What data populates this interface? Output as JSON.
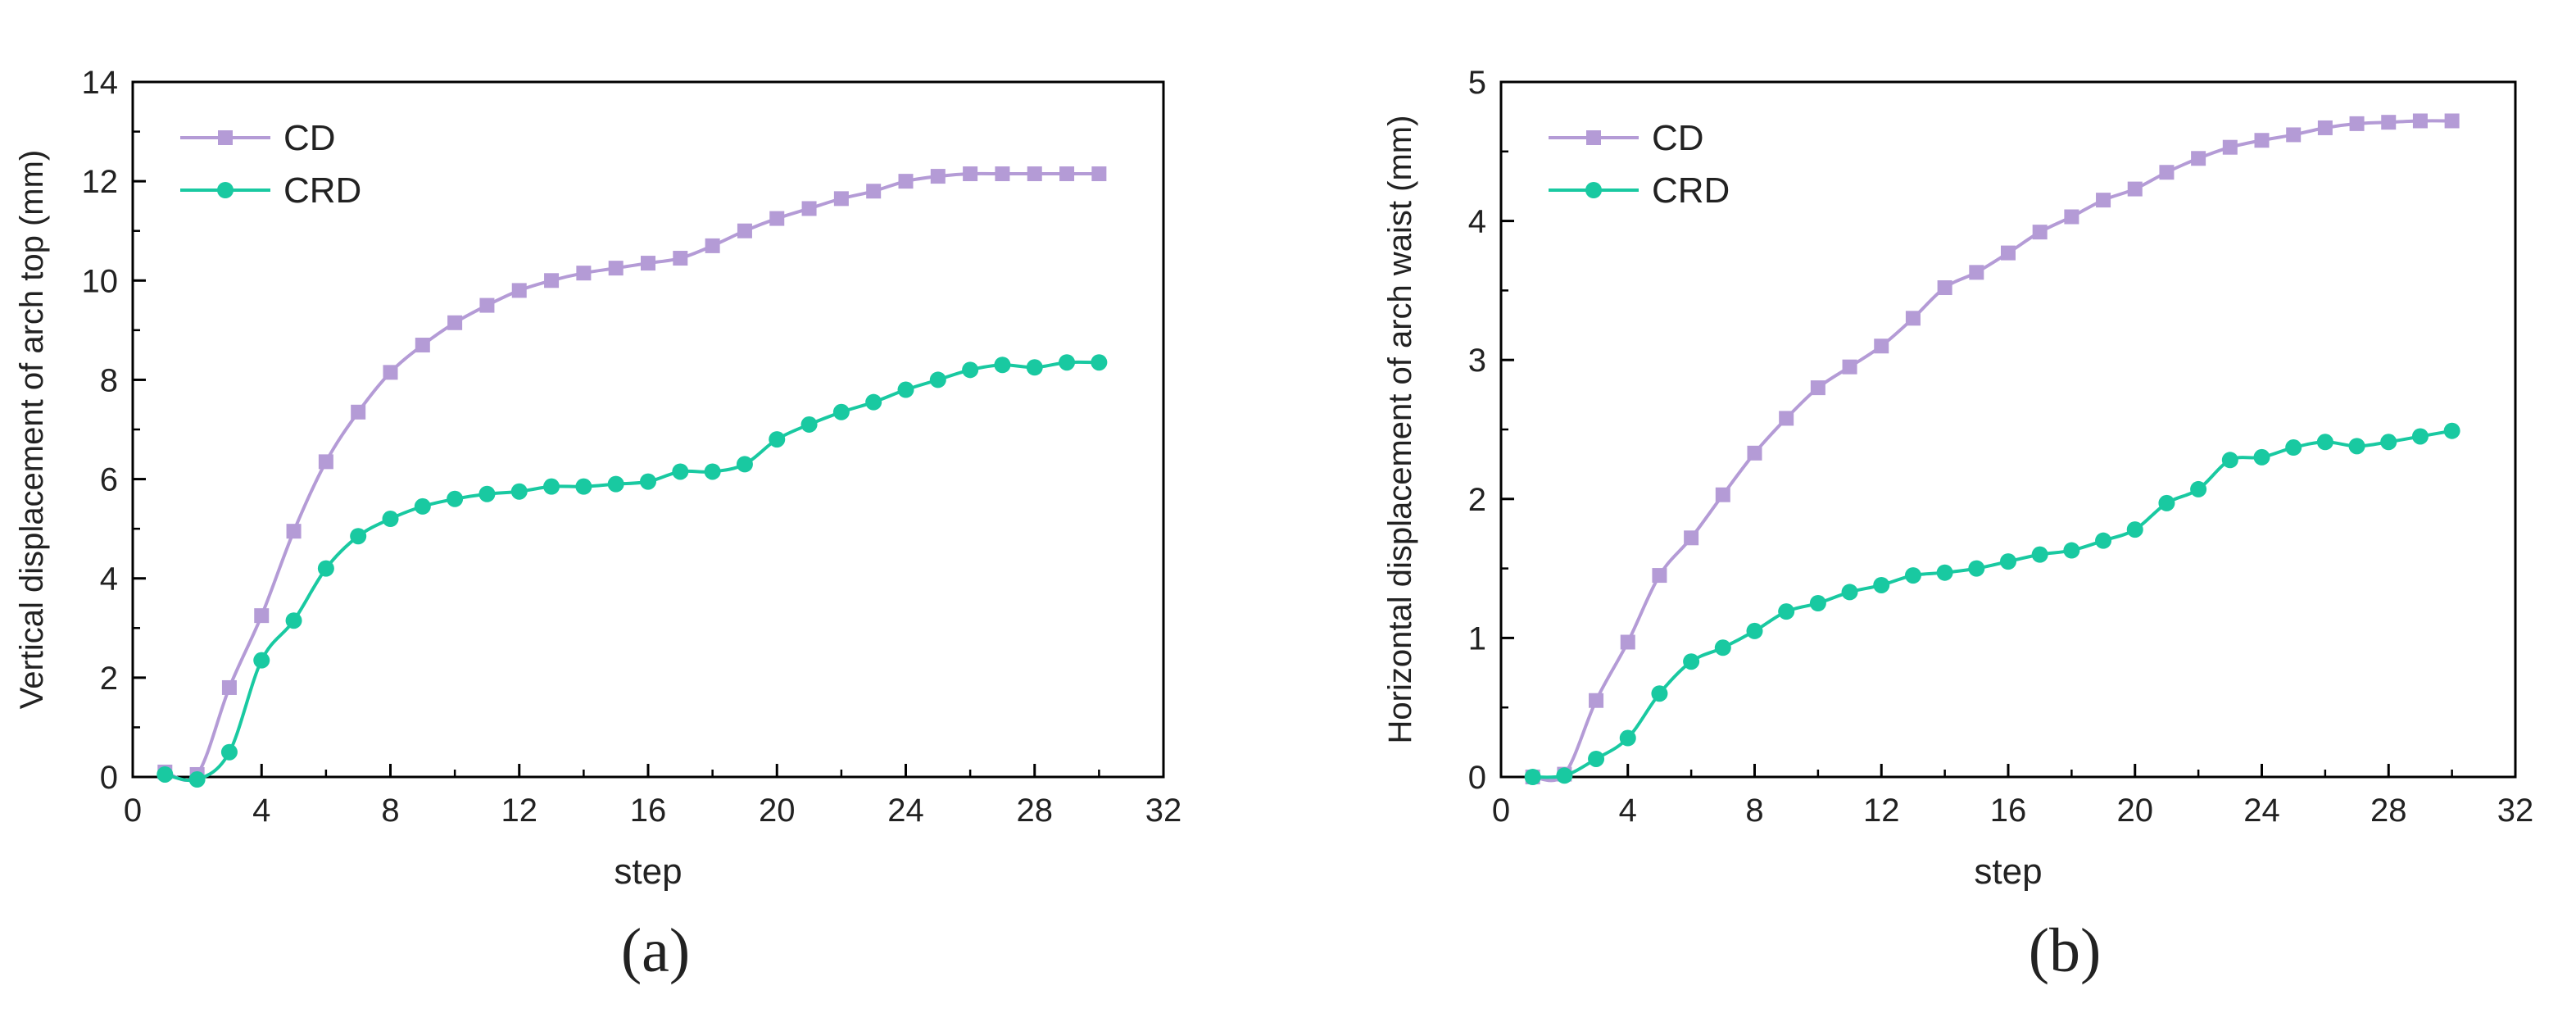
{
  "colors": {
    "CD": "#b49bd6",
    "CRD": "#19c9a1",
    "axis": "#000000"
  },
  "chart_data": [
    {
      "panel": "(a)",
      "type": "line",
      "xlabel": "step",
      "ylabel": "Vertical displacement of arch top (mm)",
      "xlim": [
        0,
        32
      ],
      "ylim": [
        0,
        14
      ],
      "xticks": [
        0,
        4,
        8,
        12,
        16,
        20,
        24,
        28,
        32
      ],
      "yticks": [
        0,
        2,
        4,
        6,
        8,
        10,
        12,
        14
      ],
      "grid": false,
      "legend": "top-left",
      "x": [
        1,
        2,
        3,
        4,
        5,
        6,
        7,
        8,
        9,
        10,
        11,
        12,
        13,
        14,
        15,
        16,
        17,
        18,
        19,
        20,
        21,
        22,
        23,
        24,
        25,
        26,
        27,
        28,
        29,
        30
      ],
      "series": [
        {
          "name": "CD",
          "marker": "square",
          "values": [
            0.1,
            0.05,
            1.8,
            3.25,
            4.95,
            6.35,
            7.35,
            8.15,
            8.7,
            9.15,
            9.5,
            9.8,
            10.0,
            10.15,
            10.25,
            10.35,
            10.45,
            10.7,
            11.0,
            11.25,
            11.45,
            11.65,
            11.8,
            12.0,
            12.1,
            12.15,
            12.15,
            12.15,
            12.15,
            12.15
          ]
        },
        {
          "name": "CRD",
          "marker": "circle",
          "values": [
            0.05,
            -0.05,
            0.5,
            2.35,
            3.15,
            4.2,
            4.85,
            5.2,
            5.45,
            5.6,
            5.7,
            5.75,
            5.85,
            5.85,
            5.9,
            5.95,
            6.15,
            6.15,
            6.3,
            6.8,
            7.1,
            7.35,
            7.55,
            7.8,
            8.0,
            8.2,
            8.3,
            8.25,
            8.35,
            8.35
          ]
        }
      ]
    },
    {
      "panel": "(b)",
      "type": "line",
      "xlabel": "step",
      "ylabel": "Horizontal displacement of arch waist (mm)",
      "xlim": [
        0,
        32
      ],
      "ylim": [
        0,
        5
      ],
      "xticks": [
        0,
        4,
        8,
        12,
        16,
        20,
        24,
        28,
        32
      ],
      "yticks": [
        0,
        1,
        2,
        3,
        4,
        5
      ],
      "grid": false,
      "legend": "top-left",
      "x": [
        1,
        2,
        3,
        4,
        5,
        6,
        7,
        8,
        9,
        10,
        11,
        12,
        13,
        14,
        15,
        16,
        17,
        18,
        19,
        20,
        21,
        22,
        23,
        24,
        25,
        26,
        27,
        28,
        29,
        30
      ],
      "series": [
        {
          "name": "CD",
          "marker": "square",
          "values": [
            0.0,
            0.02,
            0.55,
            0.97,
            1.45,
            1.72,
            2.03,
            2.33,
            2.58,
            2.8,
            2.95,
            3.1,
            3.3,
            3.52,
            3.63,
            3.77,
            3.92,
            4.03,
            4.15,
            4.23,
            4.35,
            4.45,
            4.53,
            4.58,
            4.62,
            4.67,
            4.7,
            4.71,
            4.72,
            4.72
          ]
        },
        {
          "name": "CRD",
          "marker": "circle",
          "values": [
            0.0,
            0.01,
            0.13,
            0.28,
            0.6,
            0.83,
            0.93,
            1.05,
            1.19,
            1.25,
            1.33,
            1.38,
            1.45,
            1.47,
            1.5,
            1.55,
            1.6,
            1.63,
            1.7,
            1.78,
            1.97,
            2.07,
            2.28,
            2.3,
            2.37,
            2.41,
            2.38,
            2.41,
            2.45,
            2.49
          ]
        }
      ]
    }
  ]
}
